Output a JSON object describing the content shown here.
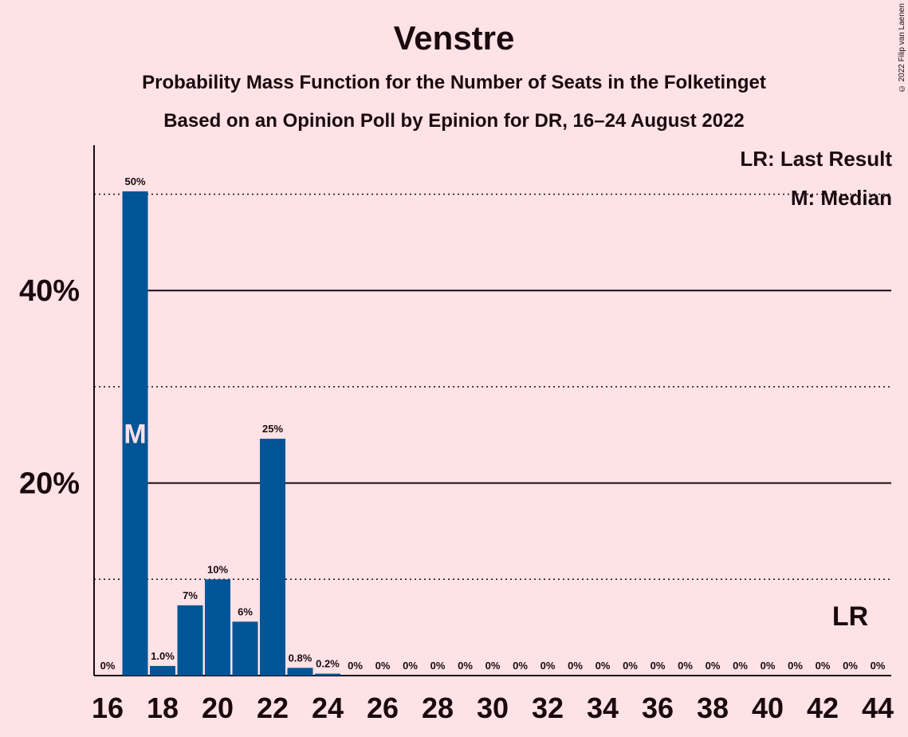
{
  "title": "Venstre",
  "subtitle1": "Probability Mass Function for the Number of Seats in the Folketinget",
  "subtitle2": "Based on an Opinion Poll by Epinion for DR, 16–24 August 2022",
  "copyright": "© 2022 Filip van Laenen",
  "legend": {
    "last_result": "LR: Last Result",
    "median": "M: Median"
  },
  "colors": {
    "background": "#FDE2E6",
    "bar": "#005596",
    "text": "#1a0a10"
  },
  "chart_data": {
    "type": "bar",
    "x": [
      16,
      17,
      18,
      19,
      20,
      21,
      22,
      23,
      24,
      25,
      26,
      27,
      28,
      29,
      30,
      31,
      32,
      33,
      34,
      35,
      36,
      37,
      38,
      39,
      40,
      41,
      42,
      43,
      44
    ],
    "values": [
      0,
      50.3,
      1.0,
      7.3,
      10.0,
      5.6,
      24.6,
      0.8,
      0.2,
      0,
      0,
      0,
      0,
      0,
      0,
      0,
      0,
      0,
      0,
      0,
      0,
      0,
      0,
      0,
      0,
      0,
      0,
      0,
      0
    ],
    "data_labels": [
      "0%",
      "50%",
      "1.0%",
      "7%",
      "10%",
      "6%",
      "25%",
      "0.8%",
      "0.2%",
      "0%",
      "0%",
      "0%",
      "0%",
      "0%",
      "0%",
      "0%",
      "0%",
      "0%",
      "0%",
      "0%",
      "0%",
      "0%",
      "0%",
      "0%",
      "0%",
      "0%",
      "0%",
      "0%",
      "0%"
    ],
    "x_ticks": [
      16,
      18,
      20,
      22,
      24,
      26,
      28,
      30,
      32,
      34,
      36,
      38,
      40,
      42,
      44
    ],
    "y_ticks": [
      {
        "value": 20,
        "label": "20%"
      },
      {
        "value": 40,
        "label": "40%"
      }
    ],
    "y_dotted_lines": [
      10,
      30,
      50
    ],
    "ylim": [
      0,
      55
    ],
    "xlim": [
      16,
      44
    ],
    "median": 17,
    "median_label": "M",
    "last_result": 43,
    "last_result_label": "LR",
    "grid": true,
    "legend_position": "top-right"
  }
}
